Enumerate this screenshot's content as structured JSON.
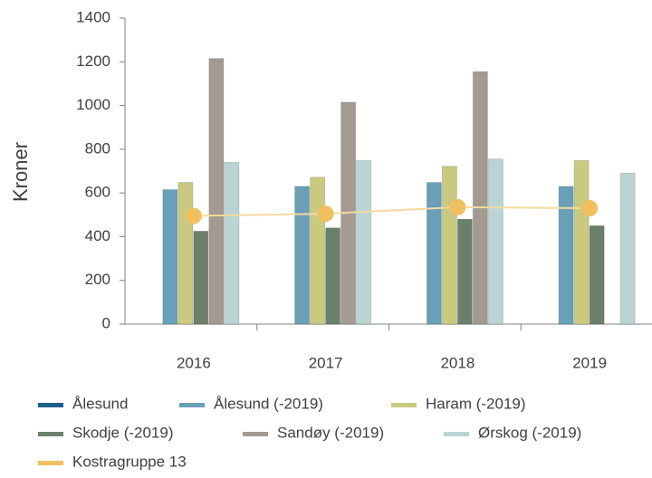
{
  "chart_data": {
    "type": "bar",
    "y_label": "Kroner",
    "categories": [
      "2016",
      "2017",
      "2018",
      "2019"
    ],
    "series": [
      {
        "name": "Ålesund",
        "color": "#1f5f8b",
        "values": [
          null,
          null,
          null,
          null
        ]
      },
      {
        "name": "Ålesund (-2019)",
        "color": "#6a9fb8",
        "values": [
          615,
          630,
          648,
          630
        ]
      },
      {
        "name": "Haram (-2019)",
        "color": "#c9ca80",
        "values": [
          648,
          672,
          722,
          748
        ]
      },
      {
        "name": "Skodje (-2019)",
        "color": "#6b806b",
        "values": [
          425,
          440,
          480,
          450
        ]
      },
      {
        "name": "Sandøy (-2019)",
        "color": "#a39b91",
        "values": [
          1215,
          1015,
          1155,
          null
        ]
      },
      {
        "name": "Ørskog (-2019)",
        "color": "#bad4d4",
        "values": [
          740,
          748,
          755,
          690
        ]
      },
      {
        "name": "Kostragruppe 13",
        "color": "#f0c060",
        "type": "line",
        "values": [
          495,
          505,
          535,
          530
        ]
      }
    ],
    "ylim": [
      0,
      1400
    ],
    "yticks": [
      0,
      200,
      400,
      600,
      800,
      1000,
      1200,
      1400
    ],
    "grid": false
  }
}
